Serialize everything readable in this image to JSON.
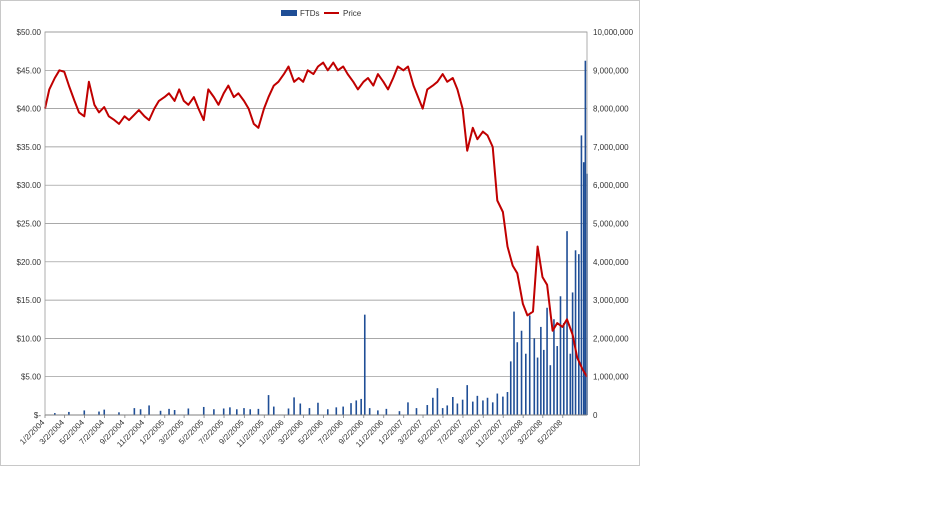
{
  "chart_data": {
    "type": "bar",
    "legend": {
      "placement": "top",
      "entries": [
        "FTDs",
        "Price"
      ]
    },
    "series_colors": {
      "FTDs": "#1f4e96",
      "Price": "#c00000"
    },
    "grid": true,
    "y_left": {
      "min": 0,
      "max": 50,
      "ticks": [
        {
          "v": 0,
          "label": "$-"
        },
        {
          "v": 5,
          "label": "$5.00"
        },
        {
          "v": 10,
          "label": "$10.00"
        },
        {
          "v": 15,
          "label": "$15.00"
        },
        {
          "v": 20,
          "label": "$20.00"
        },
        {
          "v": 25,
          "label": "$25.00"
        },
        {
          "v": 30,
          "label": "$30.00"
        },
        {
          "v": 35,
          "label": "$35.00"
        },
        {
          "v": 40,
          "label": "$40.00"
        },
        {
          "v": 45,
          "label": "$45.00"
        },
        {
          "v": 50,
          "label": "$50.00"
        }
      ]
    },
    "y_right": {
      "min": 0,
      "max": 10000000,
      "ticks": [
        {
          "v": 0,
          "label": "0"
        },
        {
          "v": 1000000,
          "label": "1,000,000"
        },
        {
          "v": 2000000,
          "label": "2,000,000"
        },
        {
          "v": 3000000,
          "label": "3,000,000"
        },
        {
          "v": 4000000,
          "label": "4,000,000"
        },
        {
          "v": 5000000,
          "label": "5,000,000"
        },
        {
          "v": 6000000,
          "label": "6,000,000"
        },
        {
          "v": 7000000,
          "label": "7,000,000"
        },
        {
          "v": 8000000,
          "label": "8,000,000"
        },
        {
          "v": 9000000,
          "label": "9,000,000"
        },
        {
          "v": 10000000,
          "label": "10,000,000"
        }
      ]
    },
    "x_range": [
      "2004-01-02",
      "2008-07-15"
    ],
    "x_ticks": [
      "1/2/2004",
      "3/2/2004",
      "5/2/2004",
      "7/2/2004",
      "9/2/2004",
      "11/2/2004",
      "1/2/2005",
      "3/2/2005",
      "5/2/2005",
      "7/2/2005",
      "9/2/2005",
      "11/2/2005",
      "1/2/2006",
      "3/2/2006",
      "5/2/2006",
      "7/2/2006",
      "9/2/2006",
      "11/2/2006",
      "1/2/2007",
      "3/2/2007",
      "5/2/2007",
      "7/2/2007",
      "9/2/2007",
      "11/2/2007",
      "1/2/2008",
      "3/2/2008",
      "5/2/2008"
    ],
    "series": [
      {
        "name": "Price",
        "kind": "line",
        "points": [
          [
            "2004-01-02",
            40.0
          ],
          [
            "2004-01-15",
            42.5
          ],
          [
            "2004-02-01",
            44.0
          ],
          [
            "2004-02-15",
            45.0
          ],
          [
            "2004-03-01",
            44.8
          ],
          [
            "2004-03-15",
            43.0
          ],
          [
            "2004-04-01",
            41.0
          ],
          [
            "2004-04-15",
            39.5
          ],
          [
            "2004-05-01",
            39.0
          ],
          [
            "2004-05-15",
            43.5
          ],
          [
            "2004-06-01",
            40.5
          ],
          [
            "2004-06-15",
            39.5
          ],
          [
            "2004-07-01",
            40.2
          ],
          [
            "2004-07-15",
            39.0
          ],
          [
            "2004-08-01",
            38.5
          ],
          [
            "2004-08-15",
            38.0
          ],
          [
            "2004-09-01",
            39.0
          ],
          [
            "2004-09-15",
            38.5
          ],
          [
            "2004-10-01",
            39.2
          ],
          [
            "2004-10-15",
            39.8
          ],
          [
            "2004-11-01",
            39.0
          ],
          [
            "2004-11-15",
            38.5
          ],
          [
            "2004-12-01",
            40.0
          ],
          [
            "2004-12-15",
            41.0
          ],
          [
            "2005-01-01",
            41.5
          ],
          [
            "2005-01-15",
            42.0
          ],
          [
            "2005-02-01",
            41.0
          ],
          [
            "2005-02-15",
            42.5
          ],
          [
            "2005-03-01",
            41.0
          ],
          [
            "2005-03-15",
            40.5
          ],
          [
            "2005-04-01",
            41.5
          ],
          [
            "2005-04-15",
            40.0
          ],
          [
            "2005-05-01",
            38.5
          ],
          [
            "2005-05-15",
            42.5
          ],
          [
            "2005-06-01",
            41.5
          ],
          [
            "2005-06-15",
            40.5
          ],
          [
            "2005-07-01",
            42.0
          ],
          [
            "2005-07-15",
            43.0
          ],
          [
            "2005-08-01",
            41.5
          ],
          [
            "2005-08-15",
            42.0
          ],
          [
            "2005-09-01",
            41.0
          ],
          [
            "2005-09-15",
            40.0
          ],
          [
            "2005-10-01",
            38.0
          ],
          [
            "2005-10-15",
            37.5
          ],
          [
            "2005-11-01",
            40.0
          ],
          [
            "2005-11-15",
            41.5
          ],
          [
            "2005-12-01",
            43.0
          ],
          [
            "2005-12-15",
            43.5
          ],
          [
            "2006-01-01",
            44.5
          ],
          [
            "2006-01-15",
            45.5
          ],
          [
            "2006-02-01",
            43.5
          ],
          [
            "2006-02-15",
            44.0
          ],
          [
            "2006-03-01",
            43.5
          ],
          [
            "2006-03-15",
            45.0
          ],
          [
            "2006-04-01",
            44.5
          ],
          [
            "2006-04-15",
            45.5
          ],
          [
            "2006-05-01",
            46.0
          ],
          [
            "2006-05-15",
            45.0
          ],
          [
            "2006-06-01",
            46.0
          ],
          [
            "2006-06-15",
            45.0
          ],
          [
            "2006-07-01",
            45.5
          ],
          [
            "2006-07-15",
            44.5
          ],
          [
            "2006-08-01",
            43.5
          ],
          [
            "2006-08-15",
            42.5
          ],
          [
            "2006-09-01",
            43.5
          ],
          [
            "2006-09-15",
            44.0
          ],
          [
            "2006-10-01",
            43.0
          ],
          [
            "2006-10-15",
            44.5
          ],
          [
            "2006-11-01",
            43.5
          ],
          [
            "2006-11-15",
            42.5
          ],
          [
            "2006-12-01",
            44.0
          ],
          [
            "2006-12-15",
            45.5
          ],
          [
            "2007-01-01",
            45.0
          ],
          [
            "2007-01-15",
            45.5
          ],
          [
            "2007-02-01",
            43.0
          ],
          [
            "2007-02-15",
            41.5
          ],
          [
            "2007-03-01",
            40.0
          ],
          [
            "2007-03-15",
            42.5
          ],
          [
            "2007-04-01",
            43.0
          ],
          [
            "2007-04-15",
            43.5
          ],
          [
            "2007-05-01",
            44.5
          ],
          [
            "2007-05-15",
            43.5
          ],
          [
            "2007-06-01",
            44.0
          ],
          [
            "2007-06-15",
            42.5
          ],
          [
            "2007-07-01",
            40.0
          ],
          [
            "2007-07-15",
            34.5
          ],
          [
            "2007-08-01",
            37.5
          ],
          [
            "2007-08-15",
            36.0
          ],
          [
            "2007-09-01",
            37.0
          ],
          [
            "2007-09-15",
            36.5
          ],
          [
            "2007-10-01",
            35.0
          ],
          [
            "2007-10-15",
            28.0
          ],
          [
            "2007-11-01",
            26.5
          ],
          [
            "2007-11-15",
            22.0
          ],
          [
            "2007-12-01",
            19.5
          ],
          [
            "2007-12-15",
            18.5
          ],
          [
            "2008-01-01",
            14.5
          ],
          [
            "2008-01-15",
            13.0
          ],
          [
            "2008-02-01",
            13.5
          ],
          [
            "2008-02-15",
            22.0
          ],
          [
            "2008-03-01",
            18.0
          ],
          [
            "2008-03-15",
            17.0
          ],
          [
            "2008-04-01",
            11.0
          ],
          [
            "2008-04-15",
            12.0
          ],
          [
            "2008-05-01",
            11.5
          ],
          [
            "2008-05-15",
            12.5
          ],
          [
            "2008-06-01",
            10.5
          ],
          [
            "2008-06-15",
            7.5
          ],
          [
            "2008-07-01",
            6.0
          ],
          [
            "2008-07-15",
            5.0
          ]
        ]
      },
      {
        "name": "FTDs",
        "kind": "bar",
        "points": [
          [
            "2004-02-01",
            50000
          ],
          [
            "2004-03-15",
            80000
          ],
          [
            "2004-05-01",
            120000
          ],
          [
            "2004-06-15",
            90000
          ],
          [
            "2004-07-01",
            140000
          ],
          [
            "2004-08-15",
            70000
          ],
          [
            "2004-10-01",
            180000
          ],
          [
            "2004-10-20",
            150000
          ],
          [
            "2004-11-15",
            250000
          ],
          [
            "2004-12-20",
            110000
          ],
          [
            "2005-01-15",
            160000
          ],
          [
            "2005-02-01",
            130000
          ],
          [
            "2005-03-15",
            170000
          ],
          [
            "2005-05-01",
            210000
          ],
          [
            "2005-06-01",
            150000
          ],
          [
            "2005-07-01",
            170000
          ],
          [
            "2005-07-20",
            200000
          ],
          [
            "2005-08-10",
            150000
          ],
          [
            "2005-09-01",
            180000
          ],
          [
            "2005-09-20",
            150000
          ],
          [
            "2005-10-15",
            160000
          ],
          [
            "2005-11-15",
            520000
          ],
          [
            "2005-12-01",
            220000
          ],
          [
            "2006-01-15",
            170000
          ],
          [
            "2006-02-01",
            460000
          ],
          [
            "2006-02-20",
            300000
          ],
          [
            "2006-03-20",
            180000
          ],
          [
            "2006-04-15",
            320000
          ],
          [
            "2006-05-15",
            150000
          ],
          [
            "2006-06-10",
            200000
          ],
          [
            "2006-07-01",
            220000
          ],
          [
            "2006-07-25",
            310000
          ],
          [
            "2006-08-10",
            380000
          ],
          [
            "2006-08-25",
            420000
          ],
          [
            "2006-09-05",
            2620000
          ],
          [
            "2006-09-20",
            180000
          ],
          [
            "2006-10-15",
            120000
          ],
          [
            "2006-11-10",
            160000
          ],
          [
            "2006-12-20",
            100000
          ],
          [
            "2007-01-15",
            330000
          ],
          [
            "2007-02-10",
            180000
          ],
          [
            "2007-03-15",
            260000
          ],
          [
            "2007-04-01",
            450000
          ],
          [
            "2007-04-15",
            700000
          ],
          [
            "2007-05-01",
            180000
          ],
          [
            "2007-05-15",
            250000
          ],
          [
            "2007-06-01",
            470000
          ],
          [
            "2007-06-15",
            300000
          ],
          [
            "2007-07-01",
            400000
          ],
          [
            "2007-07-15",
            780000
          ],
          [
            "2007-08-01",
            350000
          ],
          [
            "2007-08-15",
            500000
          ],
          [
            "2007-09-01",
            380000
          ],
          [
            "2007-09-15",
            450000
          ],
          [
            "2007-10-01",
            330000
          ],
          [
            "2007-10-15",
            560000
          ],
          [
            "2007-11-01",
            480000
          ],
          [
            "2007-11-15",
            600000
          ],
          [
            "2007-11-25",
            1400000
          ],
          [
            "2007-12-05",
            2700000
          ],
          [
            "2007-12-15",
            1900000
          ],
          [
            "2007-12-28",
            2200000
          ],
          [
            "2008-01-10",
            1600000
          ],
          [
            "2008-01-22",
            2600000
          ],
          [
            "2008-02-05",
            2000000
          ],
          [
            "2008-02-15",
            1500000
          ],
          [
            "2008-02-25",
            2300000
          ],
          [
            "2008-03-05",
            1700000
          ],
          [
            "2008-03-15",
            2800000
          ],
          [
            "2008-03-25",
            1300000
          ],
          [
            "2008-04-05",
            2500000
          ],
          [
            "2008-04-15",
            1800000
          ],
          [
            "2008-04-25",
            3100000
          ],
          [
            "2008-05-05",
            2400000
          ],
          [
            "2008-05-15",
            4800000
          ],
          [
            "2008-05-25",
            1600000
          ],
          [
            "2008-06-01",
            3200000
          ],
          [
            "2008-06-10",
            4300000
          ],
          [
            "2008-06-20",
            4200000
          ],
          [
            "2008-06-28",
            7300000
          ],
          [
            "2008-07-05",
            6600000
          ],
          [
            "2008-07-10",
            9250000
          ],
          [
            "2008-07-15",
            6300000
          ]
        ]
      }
    ]
  }
}
